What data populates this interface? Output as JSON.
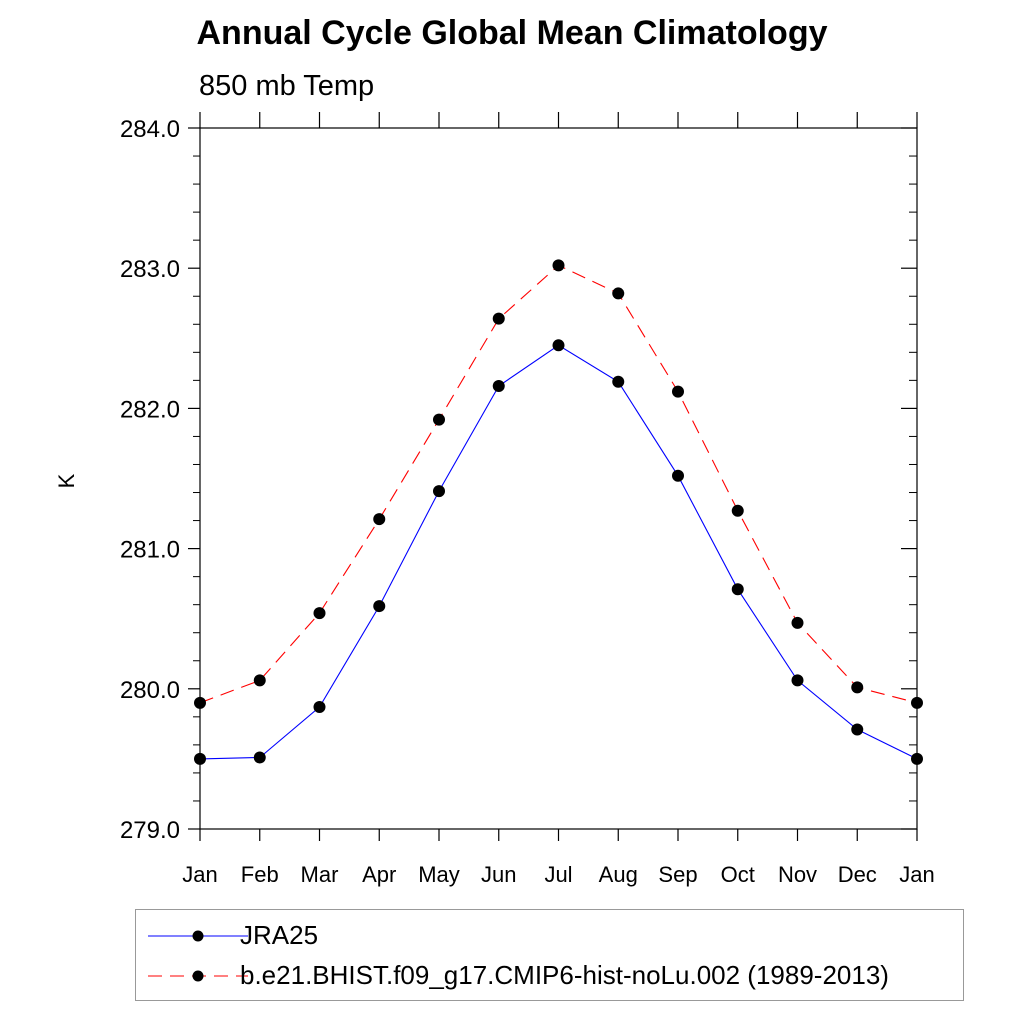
{
  "chart_data": {
    "type": "line",
    "title": "Annual Cycle Global Mean Climatology",
    "subtitle": "850 mb Temp",
    "ylabel": "K",
    "xlabel": "",
    "categories": [
      "Jan",
      "Feb",
      "Mar",
      "Apr",
      "May",
      "Jun",
      "Jul",
      "Aug",
      "Sep",
      "Oct",
      "Nov",
      "Dec",
      "Jan"
    ],
    "ylim": [
      279.0,
      284.0
    ],
    "yticks": [
      "279.0",
      "280.0",
      "281.0",
      "282.0",
      "283.0",
      "284.0"
    ],
    "grid": false,
    "legend_placement": "bottom",
    "series": [
      {
        "name": "JRA25",
        "color": "#0000ff",
        "line_style": "solid",
        "marker": "filled-circle",
        "values": [
          279.5,
          279.51,
          279.87,
          280.59,
          281.41,
          282.16,
          282.45,
          282.19,
          281.52,
          280.71,
          280.06,
          279.71,
          279.5
        ]
      },
      {
        "name": "b.e21.BHIST.f09_g17.CMIP6-hist-noLu.002 (1989-2013)",
        "color": "#ff0000",
        "line_style": "dashed",
        "marker": "filled-circle",
        "values": [
          279.9,
          280.06,
          280.54,
          281.21,
          281.92,
          282.64,
          283.02,
          282.82,
          282.12,
          281.27,
          280.47,
          280.01,
          279.9
        ]
      }
    ]
  }
}
